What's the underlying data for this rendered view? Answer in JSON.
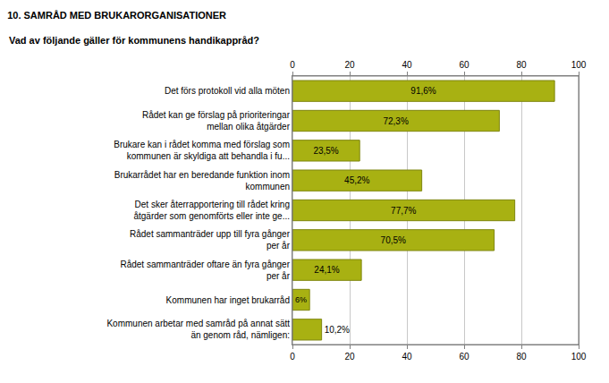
{
  "chart_data": {
    "type": "bar",
    "orientation": "horizontal",
    "title": "10. SAMRÅD MED BRUKARORGANISATIONER",
    "subtitle": "Vad av följande gäller för kommunens handikappråd?",
    "categories": [
      "Det förs protokoll vid alla möten",
      "Rådet kan ge förslag på prioriteringar mellan olika åtgärder",
      "Brukare kan i rådet komma med förslag som kommunen är skyldiga att behandla i fu...",
      "Brukarrådet har en beredande funktion inom kommunen",
      "Det sker återrapportering till rådet kring åtgärder som genomförts eller inte ge...",
      "Rådet sammanträder upp till fyra gånger per år",
      "Rådet sammanträder oftare än fyra gånger per år",
      "Kommunen har inget brukarråd",
      "Kommunen arbetar med samråd på annat sätt än genom råd, nämligen:"
    ],
    "values": [
      91.6,
      72.3,
      23.5,
      45.2,
      77.7,
      70.5,
      24.1,
      6,
      10.2
    ],
    "value_labels": [
      "91,6%",
      "72,3%",
      "23,5%",
      "45,2%",
      "77,7%",
      "70,5%",
      "24,1%",
      "6%",
      "10,2%"
    ],
    "data_labels": true,
    "color": "#a8b112",
    "xlim": [
      0,
      100
    ],
    "xticks": [
      0,
      20,
      40,
      60,
      80,
      100
    ],
    "grid": true
  }
}
